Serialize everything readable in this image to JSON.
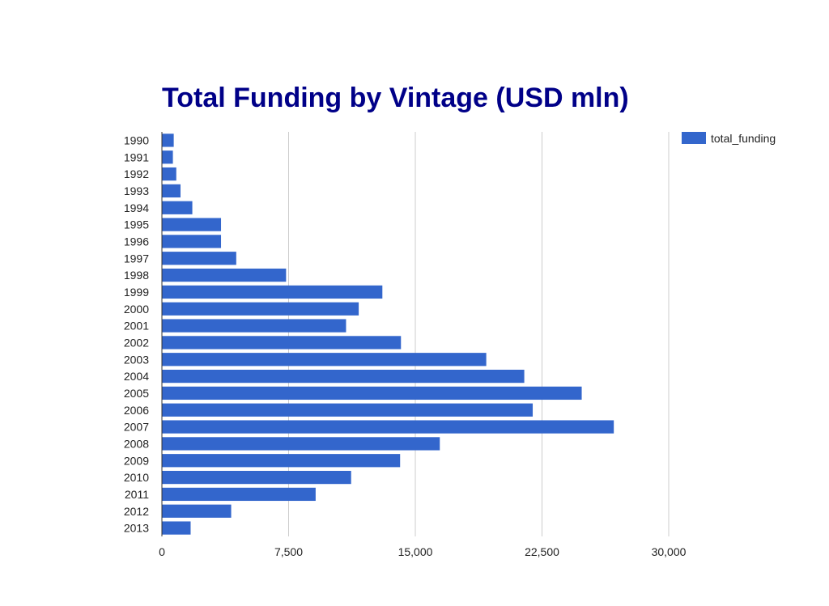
{
  "chart_data": {
    "type": "bar",
    "orientation": "horizontal",
    "title": "Total Funding by Vintage (USD mln)",
    "xlabel": "",
    "ylabel": "",
    "xlim": [
      0,
      30000
    ],
    "x_ticks": [
      "0",
      "7,500",
      "15,000",
      "22,500",
      "30,000"
    ],
    "x_tick_values": [
      0,
      7500,
      15000,
      22500,
      30000
    ],
    "grid": "vertical",
    "legend_position": "top-right",
    "categories": [
      "1990",
      "1991",
      "1992",
      "1993",
      "1994",
      "1995",
      "1996",
      "1997",
      "1998",
      "1999",
      "2000",
      "2001",
      "2002",
      "2003",
      "2004",
      "2005",
      "2006",
      "2007",
      "2008",
      "2009",
      "2010",
      "2011",
      "2012",
      "2013"
    ],
    "series": [
      {
        "name": "total_funding",
        "values": [
          700,
          650,
          850,
          1100,
          1800,
          3500,
          3500,
          4400,
          7350,
          13050,
          11650,
          10900,
          14150,
          19200,
          21450,
          24850,
          21950,
          26750,
          16450,
          14100,
          11200,
          9100,
          4100,
          1700
        ]
      }
    ],
    "colors": {
      "bar": "#3366cc",
      "title": "#000088",
      "grid": "#cccccc",
      "axis_text": "#222222"
    }
  }
}
